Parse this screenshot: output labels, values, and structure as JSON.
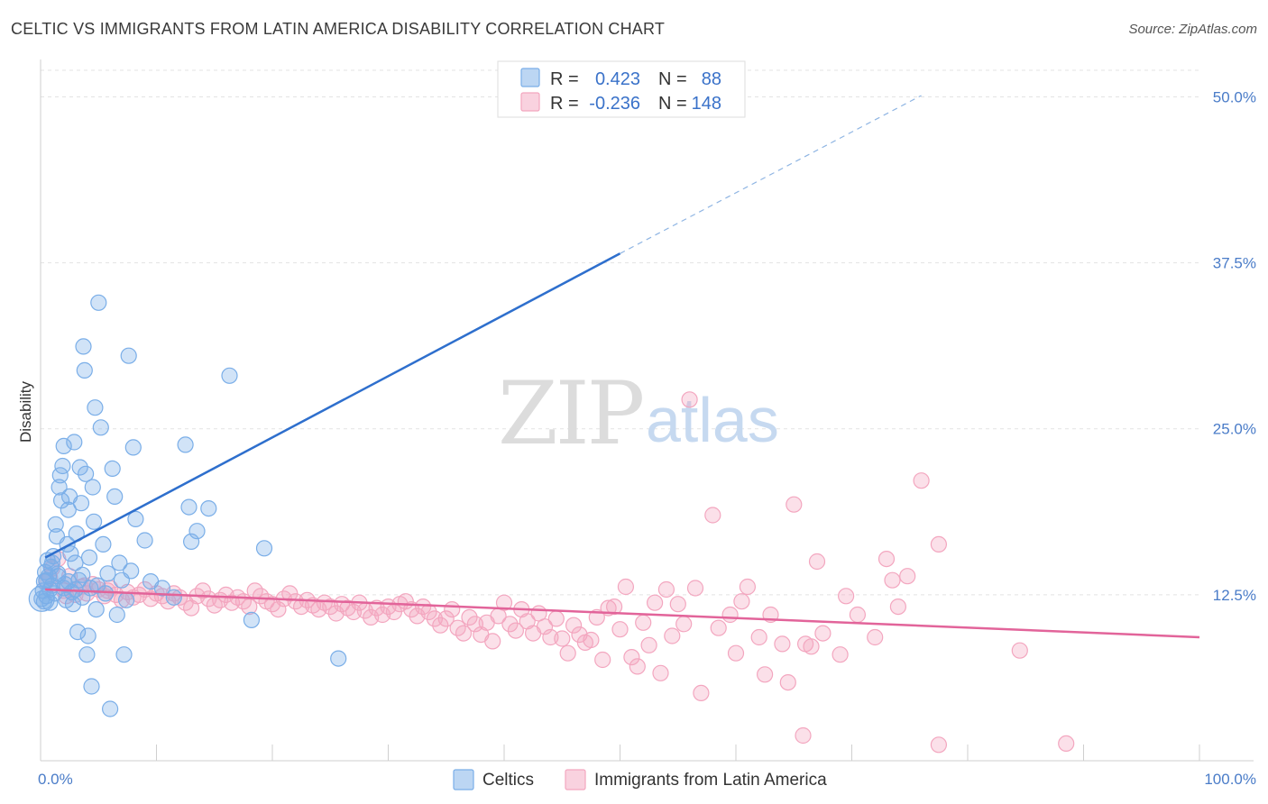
{
  "header": {
    "title": "CELTIC VS IMMIGRANTS FROM LATIN AMERICA DISABILITY CORRELATION CHART",
    "source": "Source: ZipAtlas.com"
  },
  "watermark": {
    "part1": "ZIP",
    "part2": "atlas"
  },
  "chart_data": {
    "type": "scatter",
    "ylabel": "Disability",
    "xlim": [
      0,
      100
    ],
    "ylim": [
      0,
      52
    ],
    "x_tick_labels": [
      {
        "value": 0,
        "label": "0.0%"
      },
      {
        "value": 100,
        "label": "100.0%"
      }
    ],
    "y_tick_labels": [
      {
        "value": 12.5,
        "label": "12.5%"
      },
      {
        "value": 25.0,
        "label": "25.0%"
      },
      {
        "value": 37.5,
        "label": "37.5%"
      },
      {
        "value": 50.0,
        "label": "50.0%"
      }
    ],
    "grid": true,
    "legend_position": "top-center",
    "series": [
      {
        "name": "Celtics",
        "color": "#7aaee8",
        "line_color": "#2e6fcd",
        "stats": {
          "r_label": "R =",
          "r": "0.423",
          "n_label": "N =",
          "n": "88"
        },
        "trend": {
          "x0": 0.4,
          "y0": 15.3,
          "x1": 50,
          "y1": 38.2,
          "x_dash_end": 76,
          "y_dash_end": 50.1
        },
        "points": [
          [
            0.2,
            12.8
          ],
          [
            0.3,
            13.5
          ],
          [
            0.4,
            14.2
          ],
          [
            0.5,
            12.4
          ],
          [
            0.6,
            15.1
          ],
          [
            0.7,
            13.9
          ],
          [
            0.8,
            12.9
          ],
          [
            0.9,
            14.6
          ],
          [
            1.0,
            13.2
          ],
          [
            1.1,
            15.4
          ],
          [
            1.2,
            12.6
          ],
          [
            1.3,
            17.8
          ],
          [
            1.4,
            16.9
          ],
          [
            1.5,
            14.1
          ],
          [
            1.6,
            20.6
          ],
          [
            1.7,
            21.5
          ],
          [
            1.8,
            19.6
          ],
          [
            1.9,
            22.2
          ],
          [
            2.0,
            23.7
          ],
          [
            2.1,
            13.3
          ],
          [
            2.2,
            12.1
          ],
          [
            2.3,
            16.3
          ],
          [
            2.4,
            18.9
          ],
          [
            2.5,
            19.9
          ],
          [
            2.6,
            15.6
          ],
          [
            2.7,
            12.7
          ],
          [
            2.8,
            11.8
          ],
          [
            2.9,
            24.0
          ],
          [
            3.0,
            14.9
          ],
          [
            3.1,
            17.1
          ],
          [
            3.2,
            9.7
          ],
          [
            3.3,
            13.6
          ],
          [
            3.4,
            22.1
          ],
          [
            3.5,
            19.4
          ],
          [
            3.6,
            12.3
          ],
          [
            3.7,
            31.2
          ],
          [
            3.8,
            29.4
          ],
          [
            3.9,
            21.6
          ],
          [
            4.0,
            8.0
          ],
          [
            4.1,
            9.4
          ],
          [
            4.2,
            15.3
          ],
          [
            4.3,
            13.0
          ],
          [
            4.4,
            5.6
          ],
          [
            4.5,
            20.6
          ],
          [
            4.6,
            18.0
          ],
          [
            4.7,
            26.6
          ],
          [
            4.8,
            11.4
          ],
          [
            4.9,
            13.2
          ],
          [
            5.0,
            34.5
          ],
          [
            5.2,
            25.1
          ],
          [
            5.4,
            16.3
          ],
          [
            5.6,
            12.6
          ],
          [
            5.8,
            14.1
          ],
          [
            6.0,
            3.9
          ],
          [
            6.2,
            22.0
          ],
          [
            6.4,
            19.9
          ],
          [
            6.6,
            11.0
          ],
          [
            6.8,
            14.9
          ],
          [
            7.0,
            13.6
          ],
          [
            7.2,
            8.0
          ],
          [
            7.4,
            12.1
          ],
          [
            7.6,
            30.5
          ],
          [
            7.8,
            14.3
          ],
          [
            8.0,
            23.6
          ],
          [
            8.2,
            18.2
          ],
          [
            9.0,
            16.6
          ],
          [
            9.5,
            13.5
          ],
          [
            10.5,
            13.0
          ],
          [
            11.5,
            12.3
          ],
          [
            12.5,
            23.8
          ],
          [
            12.8,
            19.1
          ],
          [
            13.0,
            16.5
          ],
          [
            13.5,
            17.3
          ],
          [
            14.5,
            19.0
          ],
          [
            16.3,
            29.0
          ],
          [
            18.2,
            10.6
          ],
          [
            19.3,
            16.0
          ],
          [
            25.7,
            7.7
          ],
          [
            0.1,
            12.2
          ],
          [
            1.0,
            14.9
          ],
          [
            2.0,
            13.0
          ],
          [
            3.0,
            12.9
          ],
          [
            0.5,
            13.6
          ],
          [
            1.5,
            13.9
          ],
          [
            0.8,
            11.9
          ],
          [
            2.4,
            13.5
          ],
          [
            3.6,
            14.0
          ],
          [
            0.3,
            12.0
          ]
        ]
      },
      {
        "name": "Immigrants from Latin America",
        "color": "#f3a6bf",
        "line_color": "#e2649a",
        "stats": {
          "r_label": "R =",
          "r": "-0.236",
          "n_label": "N =",
          "n": "148"
        },
        "trend": {
          "x0": 0.4,
          "y0": 12.9,
          "x1": 100,
          "y1": 9.3
        },
        "points": [
          [
            0.5,
            13.5
          ],
          [
            1.0,
            14.5
          ],
          [
            1.5,
            15.2
          ],
          [
            2.0,
            12.8
          ],
          [
            2.5,
            13.9
          ],
          [
            3.0,
            12.5
          ],
          [
            3.5,
            13.1
          ],
          [
            4.0,
            12.6
          ],
          [
            4.5,
            13.3
          ],
          [
            5.0,
            12.9
          ],
          [
            5.5,
            12.4
          ],
          [
            6.0,
            13.0
          ],
          [
            6.5,
            12.5
          ],
          [
            7.0,
            12.1
          ],
          [
            7.5,
            12.7
          ],
          [
            8.0,
            12.3
          ],
          [
            8.5,
            12.5
          ],
          [
            9.0,
            12.9
          ],
          [
            9.5,
            12.2
          ],
          [
            10.0,
            12.6
          ],
          [
            10.5,
            12.4
          ],
          [
            11.0,
            12.0
          ],
          [
            11.5,
            12.6
          ],
          [
            12.0,
            12.3
          ],
          [
            12.5,
            11.9
          ],
          [
            13.0,
            11.5
          ],
          [
            13.5,
            12.4
          ],
          [
            14.0,
            12.8
          ],
          [
            14.5,
            12.2
          ],
          [
            15.0,
            11.7
          ],
          [
            15.5,
            12.1
          ],
          [
            16.0,
            12.5
          ],
          [
            16.5,
            11.9
          ],
          [
            17.0,
            12.3
          ],
          [
            17.5,
            12.0
          ],
          [
            18.0,
            11.6
          ],
          [
            18.5,
            12.8
          ],
          [
            19.0,
            12.4
          ],
          [
            19.5,
            12.0
          ],
          [
            20.0,
            11.8
          ],
          [
            20.5,
            11.4
          ],
          [
            21.0,
            12.2
          ],
          [
            21.5,
            12.6
          ],
          [
            22.0,
            12.0
          ],
          [
            22.5,
            11.6
          ],
          [
            23.0,
            12.1
          ],
          [
            23.5,
            11.7
          ],
          [
            24.0,
            11.4
          ],
          [
            24.5,
            11.9
          ],
          [
            25.0,
            11.6
          ],
          [
            25.5,
            11.1
          ],
          [
            26.0,
            11.8
          ],
          [
            26.5,
            11.5
          ],
          [
            27.0,
            11.2
          ],
          [
            27.5,
            11.9
          ],
          [
            28.0,
            11.3
          ],
          [
            28.5,
            10.8
          ],
          [
            29.0,
            11.5
          ],
          [
            29.5,
            11.0
          ],
          [
            30.0,
            11.6
          ],
          [
            30.5,
            11.2
          ],
          [
            31.0,
            11.8
          ],
          [
            31.5,
            12.0
          ],
          [
            32.0,
            11.4
          ],
          [
            32.5,
            10.9
          ],
          [
            33.0,
            11.6
          ],
          [
            33.5,
            11.2
          ],
          [
            34.0,
            10.7
          ],
          [
            34.5,
            10.2
          ],
          [
            35.0,
            10.7
          ],
          [
            35.5,
            11.4
          ],
          [
            36.0,
            10.0
          ],
          [
            36.5,
            9.6
          ],
          [
            37.0,
            10.8
          ],
          [
            37.5,
            10.3
          ],
          [
            38.0,
            9.5
          ],
          [
            38.5,
            10.4
          ],
          [
            39.0,
            9.0
          ],
          [
            39.5,
            10.9
          ],
          [
            40.0,
            11.9
          ],
          [
            40.5,
            10.3
          ],
          [
            41.0,
            9.8
          ],
          [
            41.5,
            11.4
          ],
          [
            42.0,
            10.5
          ],
          [
            42.5,
            9.6
          ],
          [
            43.0,
            11.1
          ],
          [
            43.5,
            10.1
          ],
          [
            44.0,
            9.3
          ],
          [
            44.5,
            10.7
          ],
          [
            45.0,
            9.2
          ],
          [
            45.5,
            8.1
          ],
          [
            46.0,
            10.2
          ],
          [
            46.5,
            9.5
          ],
          [
            47.0,
            8.9
          ],
          [
            47.5,
            9.1
          ],
          [
            48.0,
            10.8
          ],
          [
            48.5,
            7.6
          ],
          [
            49.0,
            11.5
          ],
          [
            49.5,
            11.6
          ],
          [
            50.0,
            9.9
          ],
          [
            50.5,
            13.1
          ],
          [
            51.0,
            7.8
          ],
          [
            51.5,
            7.1
          ],
          [
            52.0,
            10.4
          ],
          [
            52.5,
            8.7
          ],
          [
            53.0,
            11.9
          ],
          [
            53.5,
            6.6
          ],
          [
            54.0,
            12.9
          ],
          [
            54.5,
            9.4
          ],
          [
            55.0,
            11.8
          ],
          [
            55.5,
            10.3
          ],
          [
            56.0,
            27.2
          ],
          [
            56.5,
            13.0
          ],
          [
            57.0,
            5.1
          ],
          [
            58.0,
            18.5
          ],
          [
            58.5,
            10.0
          ],
          [
            59.5,
            11.0
          ],
          [
            60.0,
            8.1
          ],
          [
            60.5,
            12.0
          ],
          [
            61.0,
            13.1
          ],
          [
            62.0,
            9.3
          ],
          [
            62.5,
            6.5
          ],
          [
            63.0,
            11.0
          ],
          [
            64.0,
            8.8
          ],
          [
            64.5,
            5.9
          ],
          [
            65.0,
            19.3
          ],
          [
            66.0,
            8.8
          ],
          [
            66.5,
            8.6
          ],
          [
            67.0,
            15.0
          ],
          [
            67.5,
            9.6
          ],
          [
            69.0,
            8.0
          ],
          [
            69.5,
            12.4
          ],
          [
            70.5,
            11.0
          ],
          [
            72.0,
            9.3
          ],
          [
            73.0,
            15.2
          ],
          [
            73.5,
            13.6
          ],
          [
            74.0,
            11.6
          ],
          [
            74.8,
            13.9
          ],
          [
            76.0,
            21.1
          ],
          [
            77.5,
            16.3
          ],
          [
            84.5,
            8.3
          ],
          [
            65.8,
            1.9
          ],
          [
            77.5,
            1.2
          ],
          [
            88.5,
            1.3
          ],
          [
            0.8,
            13.8
          ],
          [
            2.2,
            12.4
          ],
          [
            3.8,
            13.2
          ],
          [
            5.8,
            12.8
          ]
        ]
      }
    ]
  },
  "bottom_legend": [
    {
      "label": "Celtics"
    },
    {
      "label": "Immigrants from Latin America"
    }
  ]
}
